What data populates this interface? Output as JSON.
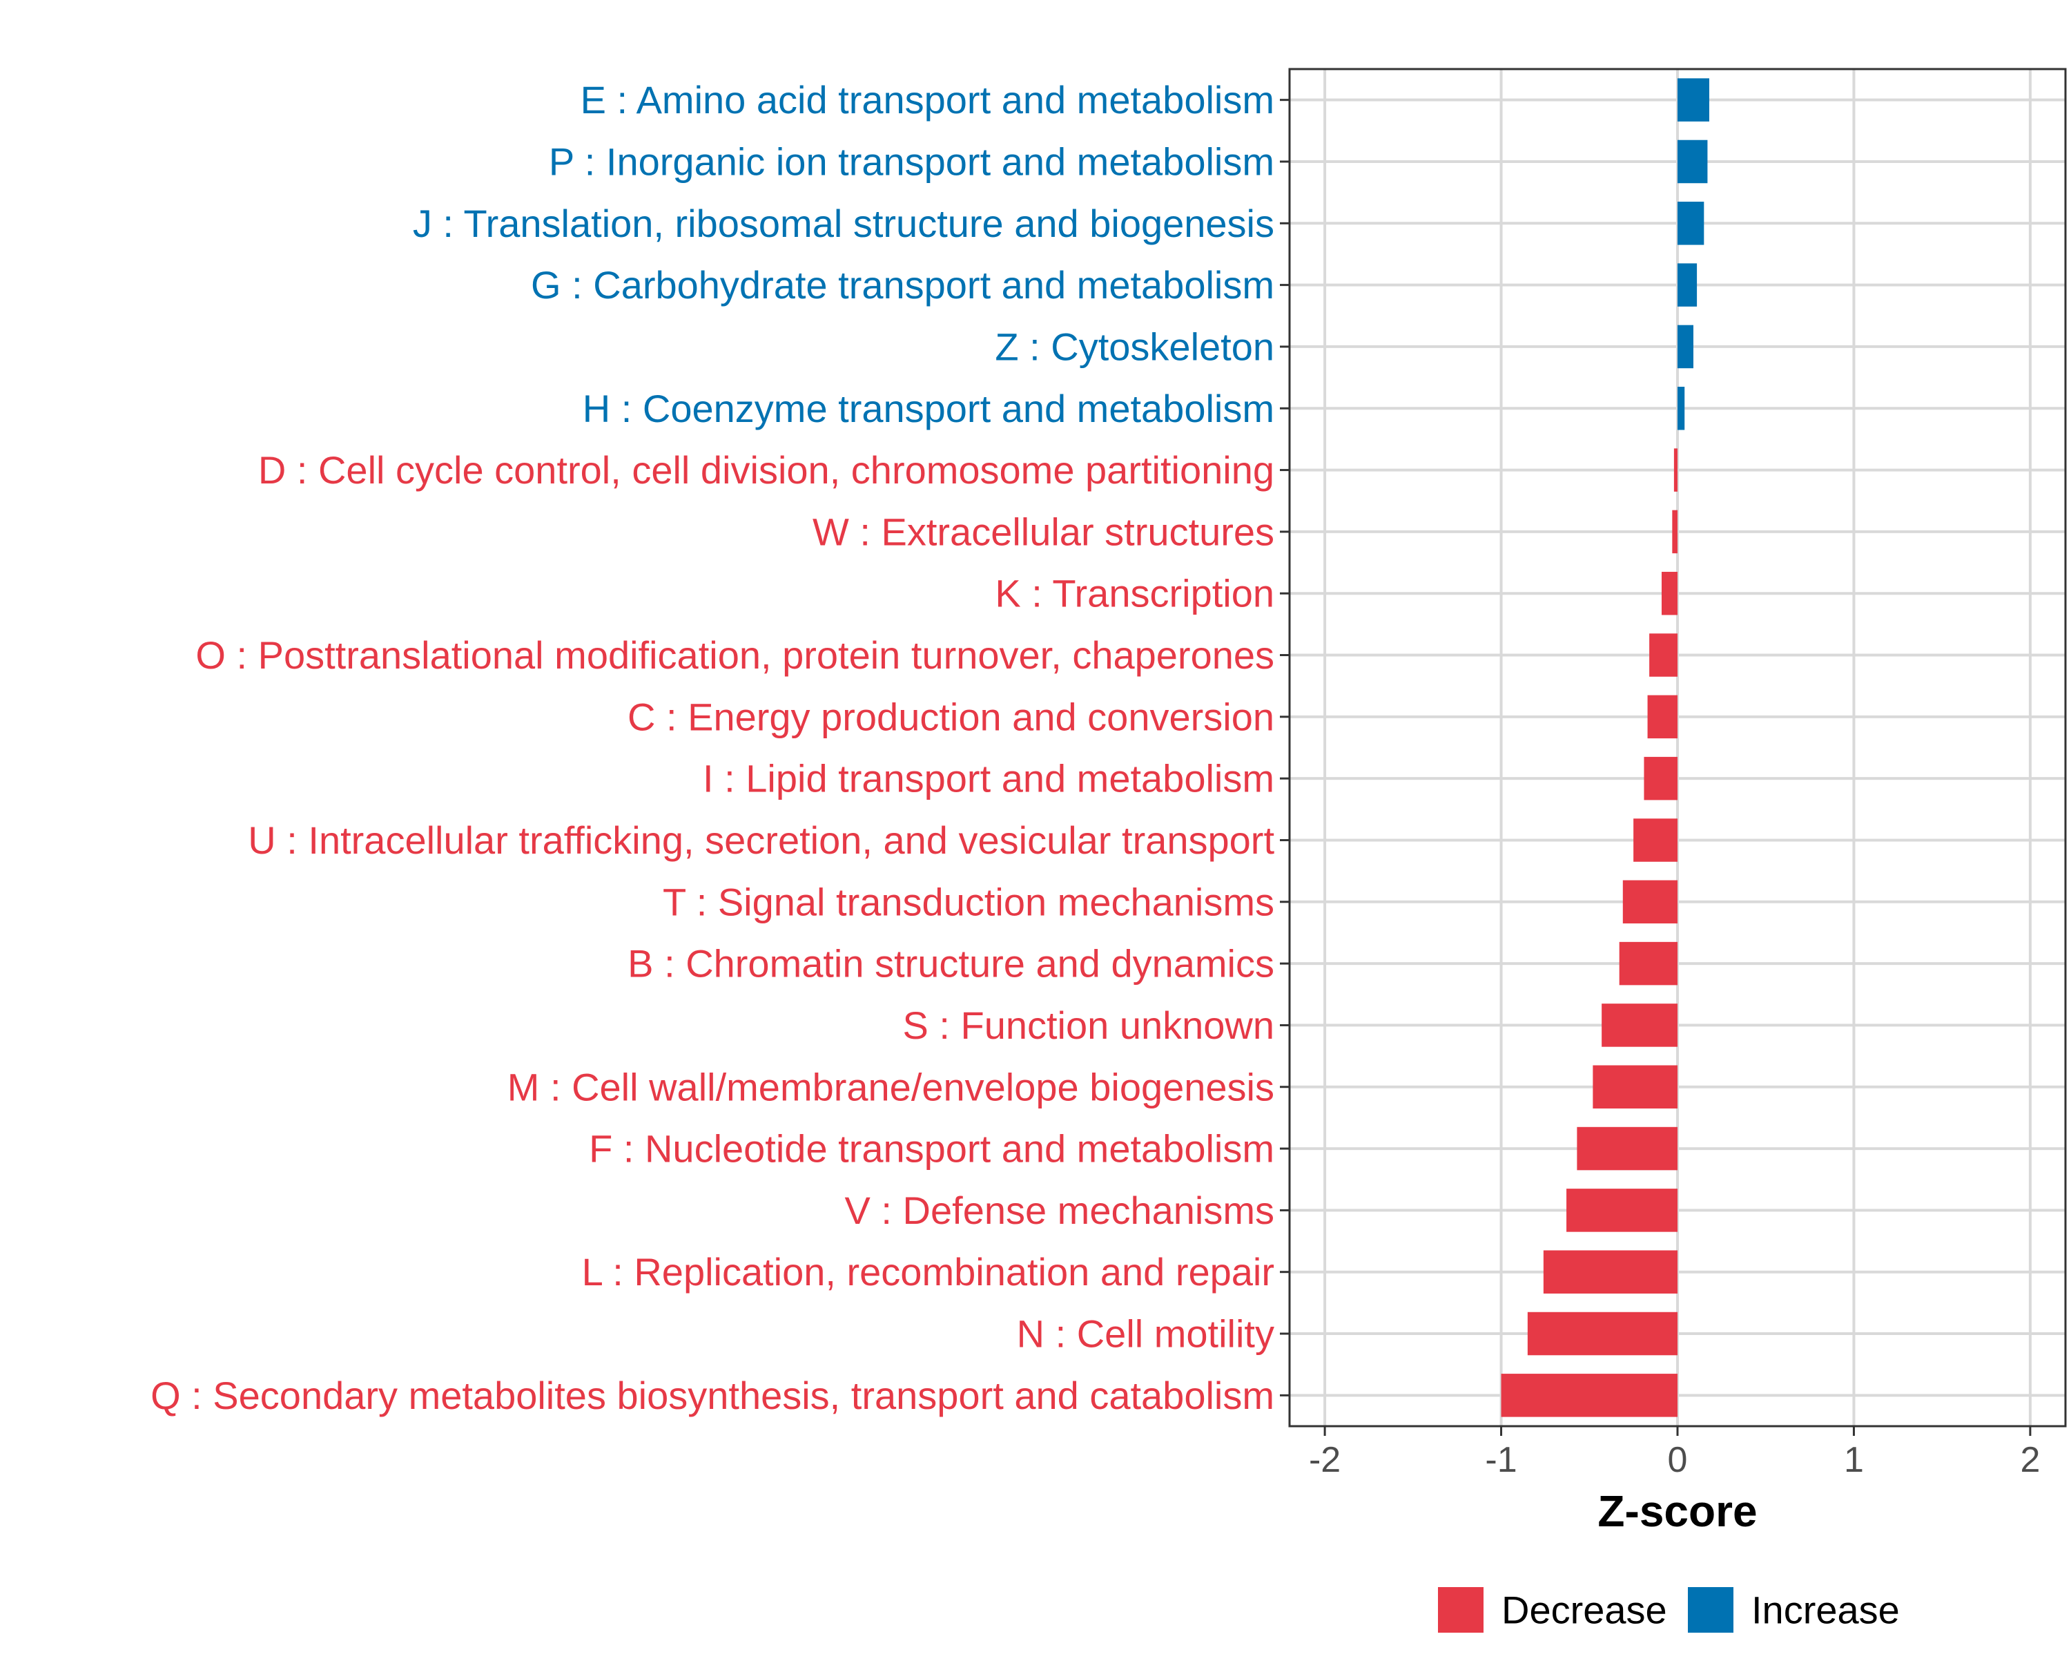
{
  "chart_data": {
    "type": "bar",
    "orientation": "horizontal",
    "xlabel": "Z-score",
    "ylabel": "",
    "xlim": [
      -2.2,
      2.2
    ],
    "xticks": [
      -2,
      -1,
      0,
      1,
      2
    ],
    "xtick_labels": [
      "-2",
      "-1",
      "0",
      "1",
      "2"
    ],
    "grid": true,
    "legend_position": "bottom",
    "colors": {
      "Decrease": "#E63946",
      "Increase": "#0072B2"
    },
    "legend": [
      {
        "name": "Decrease",
        "color": "#E63946"
      },
      {
        "name": "Increase",
        "color": "#0072B2"
      }
    ],
    "categories": [
      "E : Amino acid transport and metabolism",
      "P : Inorganic ion transport and metabolism",
      "J : Translation, ribosomal structure and biogenesis",
      "G : Carbohydrate transport and metabolism",
      "Z : Cytoskeleton",
      "H : Coenzyme transport and metabolism",
      "D : Cell cycle control, cell division, chromosome partitioning",
      "W : Extracellular structures",
      "K : Transcription",
      "O : Posttranslational modification, protein turnover, chaperones",
      "C : Energy production and conversion",
      "I : Lipid transport and metabolism",
      "U : Intracellular trafficking, secretion, and vesicular transport",
      "T : Signal transduction mechanisms",
      "B : Chromatin structure and dynamics",
      "S : Function unknown",
      "M : Cell wall/membrane/envelope biogenesis",
      "F : Nucleotide transport and metabolism",
      "V : Defense mechanisms",
      "L : Replication, recombination and repair",
      "N : Cell motility",
      "Q : Secondary metabolites biosynthesis, transport and catabolism"
    ],
    "values": [
      0.18,
      0.17,
      0.15,
      0.11,
      0.09,
      0.04,
      -0.02,
      -0.03,
      -0.09,
      -0.16,
      -0.17,
      -0.19,
      -0.25,
      -0.31,
      -0.33,
      -0.43,
      -0.48,
      -0.57,
      -0.63,
      -0.76,
      -0.85,
      -1.0
    ],
    "groups": [
      "Increase",
      "Increase",
      "Increase",
      "Increase",
      "Increase",
      "Increase",
      "Decrease",
      "Decrease",
      "Decrease",
      "Decrease",
      "Decrease",
      "Decrease",
      "Decrease",
      "Decrease",
      "Decrease",
      "Decrease",
      "Decrease",
      "Decrease",
      "Decrease",
      "Decrease",
      "Decrease",
      "Decrease"
    ]
  }
}
